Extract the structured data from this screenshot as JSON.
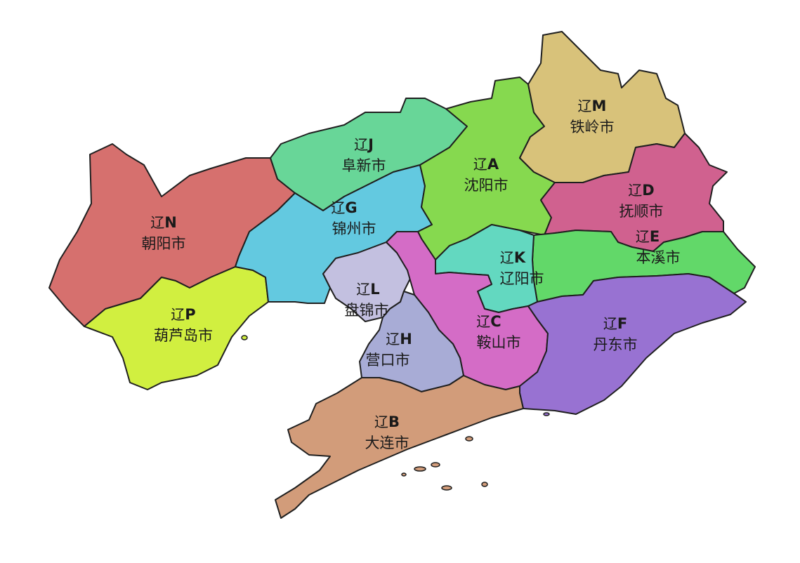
{
  "map": {
    "province_prefix": "辽",
    "regions": [
      {
        "id": "A",
        "letter": "A",
        "name": "沈阳市",
        "color": "#86d94f"
      },
      {
        "id": "B",
        "letter": "B",
        "name": "大连市",
        "color": "#d29c7a"
      },
      {
        "id": "C",
        "letter": "C",
        "name": "鞍山市",
        "color": "#d46cc6"
      },
      {
        "id": "D",
        "letter": "D",
        "name": "抚顺市",
        "color": "#d0618f"
      },
      {
        "id": "E",
        "letter": "E",
        "name": "本溪市",
        "color": "#62d869"
      },
      {
        "id": "F",
        "letter": "F",
        "name": "丹东市",
        "color": "#9872d2"
      },
      {
        "id": "G",
        "letter": "G",
        "name": "锦州市",
        "color": "#63c9e0"
      },
      {
        "id": "H",
        "letter": "H",
        "name": "营口市",
        "color": "#a8acd6"
      },
      {
        "id": "J",
        "letter": "J",
        "name": "阜新市",
        "color": "#68d698"
      },
      {
        "id": "K",
        "letter": "K",
        "name": "辽阳市",
        "color": "#63d8c0"
      },
      {
        "id": "L",
        "letter": "L",
        "name": "盘锦市",
        "color": "#c3c0e0"
      },
      {
        "id": "M",
        "letter": "M",
        "name": "铁岭市",
        "color": "#d8c27a"
      },
      {
        "id": "N",
        "letter": "N",
        "name": "朝阳市",
        "color": "#d6706e"
      },
      {
        "id": "P",
        "letter": "P",
        "name": "葫芦岛市",
        "color": "#d1ef40"
      }
    ]
  }
}
